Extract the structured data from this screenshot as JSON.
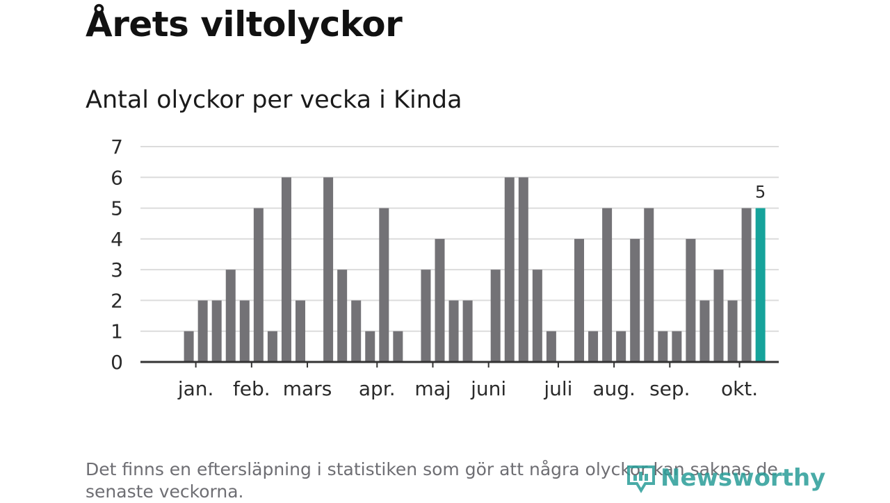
{
  "title": "Årets viltolyckor",
  "chart_data": {
    "type": "bar",
    "title": "Antal olyckor per vecka i Kinda",
    "xlabel": "",
    "ylabel": "",
    "ylim": [
      0,
      7
    ],
    "yticks": [
      0,
      1,
      2,
      3,
      4,
      5,
      6,
      7
    ],
    "grid": true,
    "weeks": [
      1,
      2,
      3,
      4,
      5,
      6,
      7,
      8,
      9,
      10,
      11,
      12,
      13,
      14,
      15,
      16,
      17,
      18,
      19,
      20,
      21,
      22,
      23,
      24,
      25,
      26,
      27,
      28,
      29,
      30,
      31,
      32,
      33,
      34,
      35,
      36,
      37,
      38,
      39,
      40,
      41,
      42,
      43,
      44
    ],
    "values": [
      0,
      0,
      1,
      2,
      2,
      3,
      2,
      5,
      1,
      6,
      2,
      0,
      6,
      3,
      2,
      1,
      5,
      1,
      0,
      3,
      4,
      2,
      2,
      0,
      3,
      6,
      6,
      3,
      1,
      0,
      4,
      1,
      5,
      1,
      4,
      5,
      1,
      1,
      4,
      2,
      3,
      2,
      5,
      5
    ],
    "highlight_index": 43,
    "highlight_label": "5",
    "bar_color": "#737276",
    "highlight_color": "#16a39b",
    "month_labels": [
      {
        "label": "jan.",
        "week": 3.5
      },
      {
        "label": "feb.",
        "week": 7.5
      },
      {
        "label": "mars",
        "week": 11.5
      },
      {
        "label": "apr.",
        "week": 16.5
      },
      {
        "label": "maj",
        "week": 20.5
      },
      {
        "label": "juni",
        "week": 24.5
      },
      {
        "label": "juli",
        "week": 29.5
      },
      {
        "label": "aug.",
        "week": 33.5
      },
      {
        "label": "sep.",
        "week": 37.5
      },
      {
        "label": "okt.",
        "week": 42.5
      }
    ],
    "month_tick_weeks": [
      3,
      7,
      11,
      16,
      20,
      24,
      29,
      33,
      37,
      42
    ]
  },
  "footnote": "Det finns en eftersläpning i statistiken som gör att några olyckor kan saknas de senaste veckorna.",
  "logo": {
    "text": "Newsworthy",
    "icon": "newsworthy-logo-icon",
    "color": "#2a9d98"
  }
}
